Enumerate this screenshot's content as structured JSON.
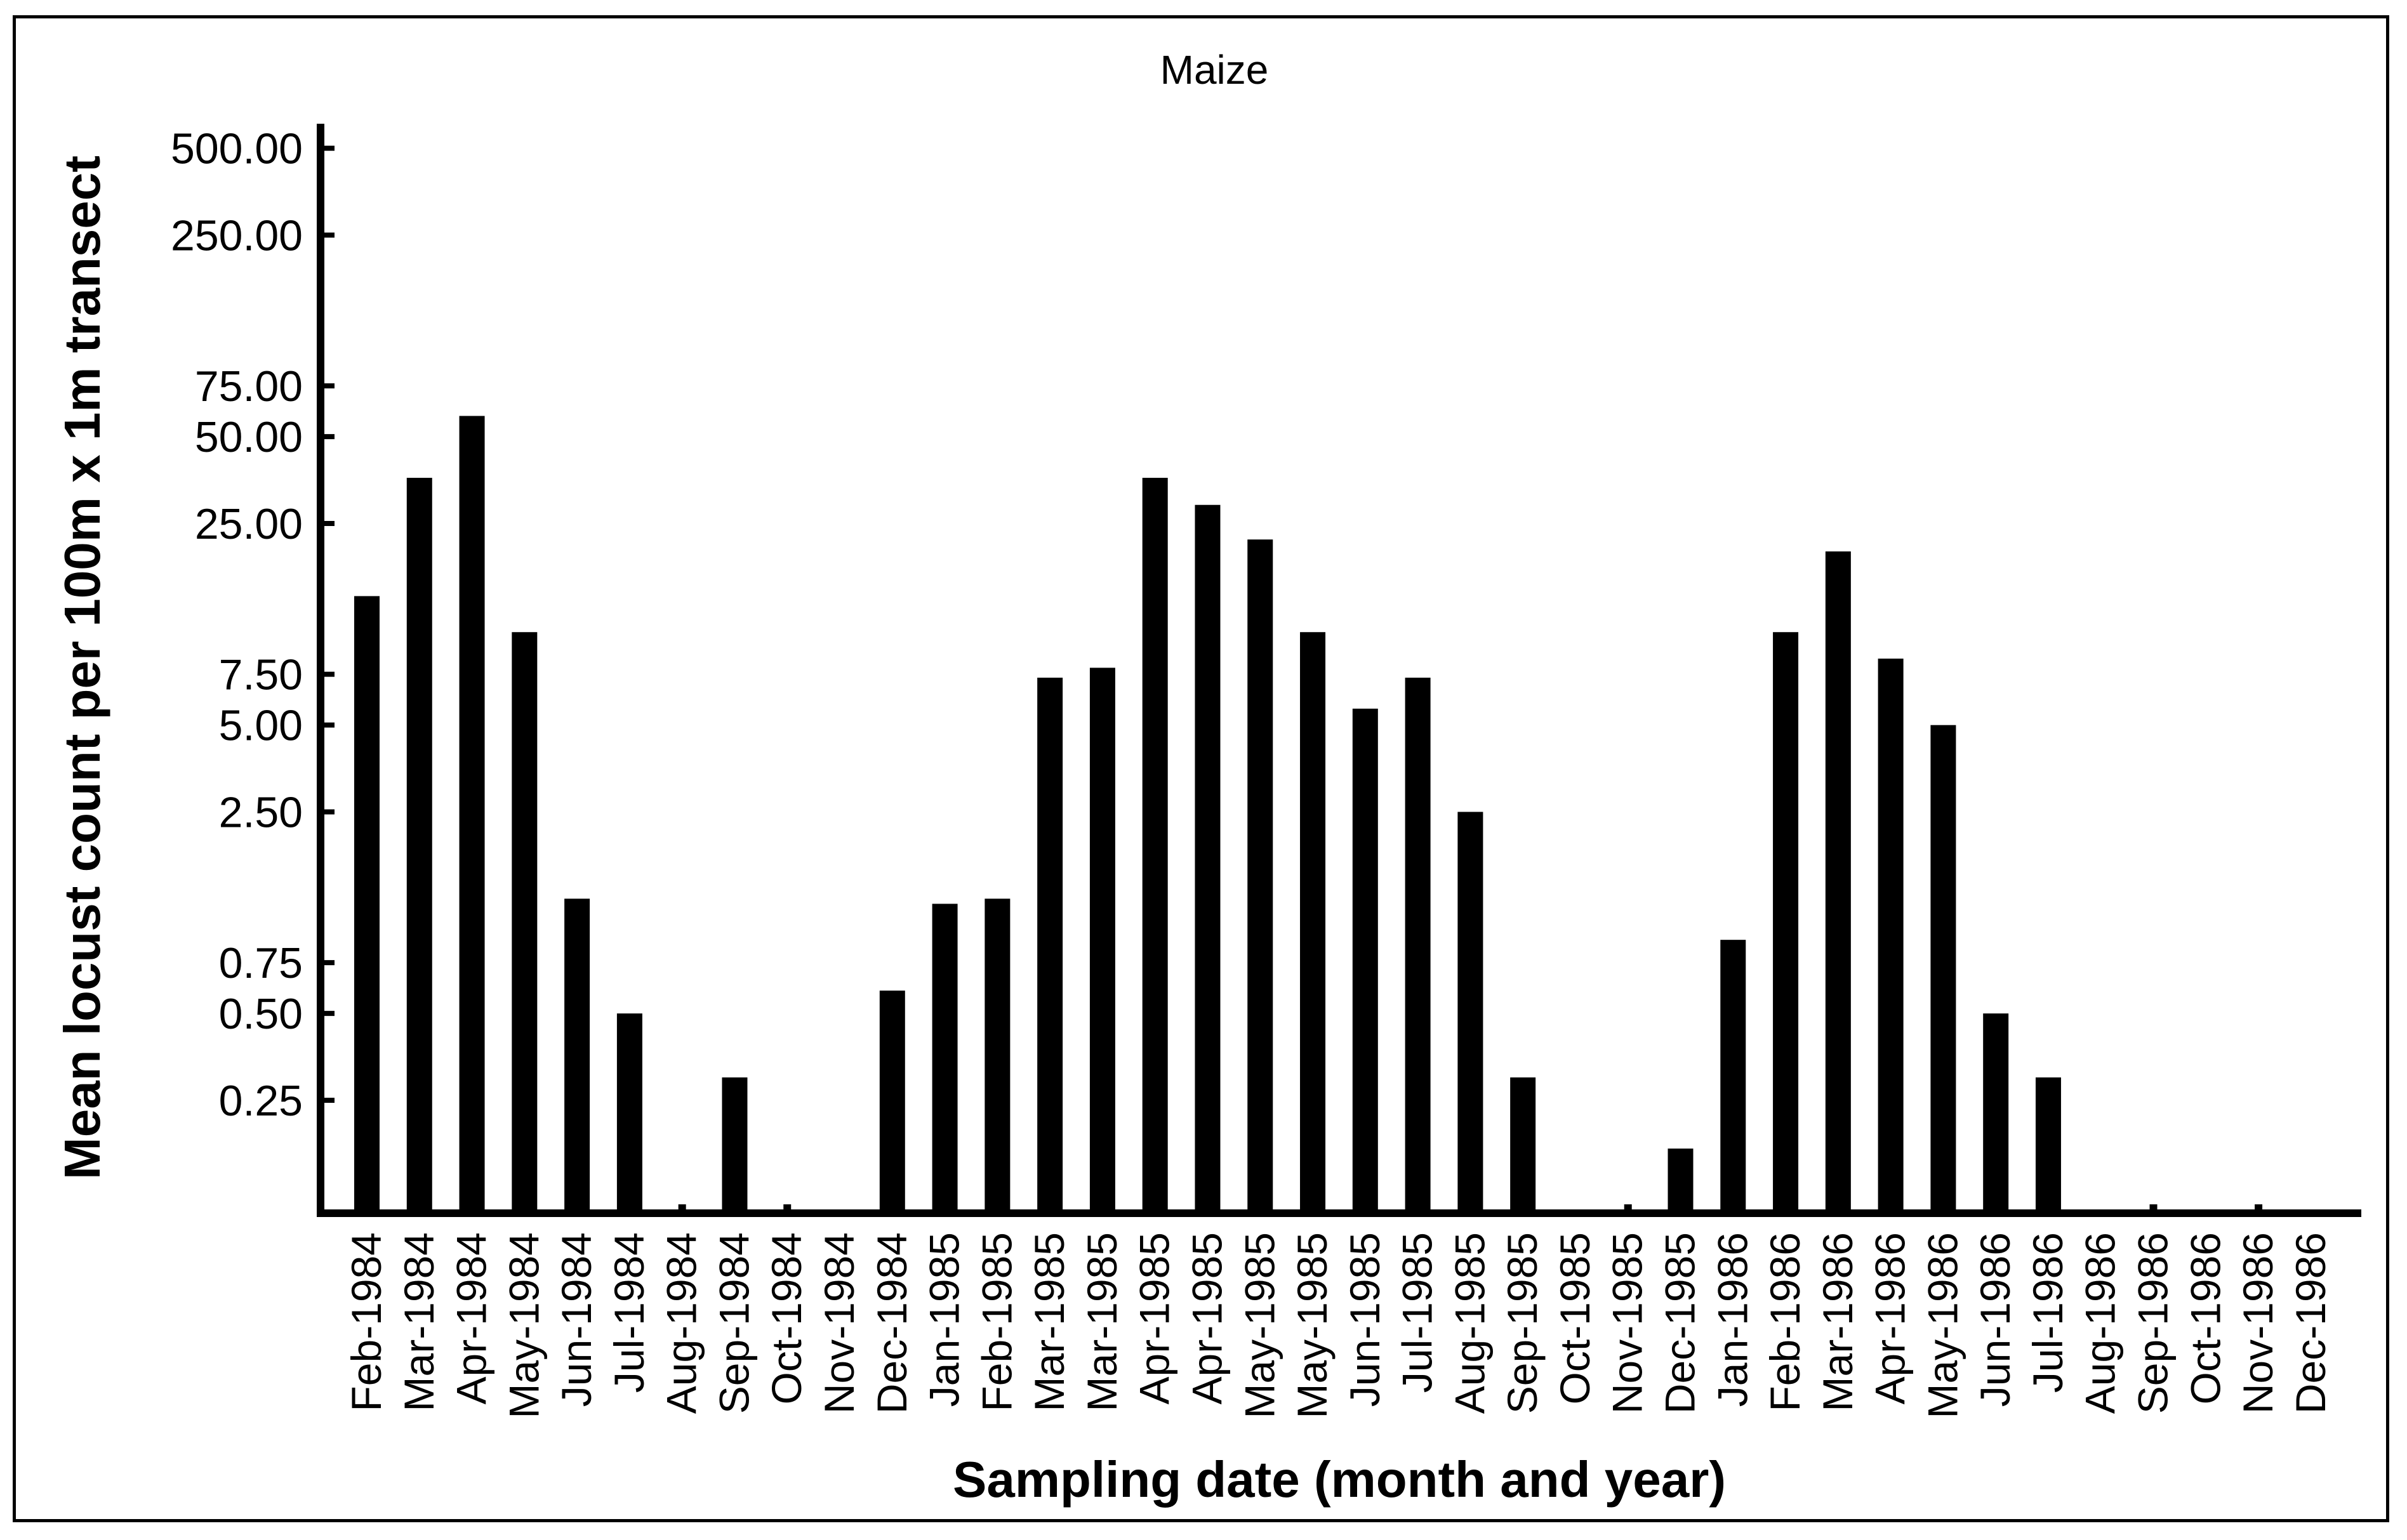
{
  "chart_data": {
    "type": "bar",
    "title": "Maize",
    "xlabel": "Sampling date (month and year)",
    "ylabel": "Mean locust count per 100m x 1m transect",
    "y_scale": "log",
    "y_ticks": [
      {
        "value": 0.25,
        "label": "0.25"
      },
      {
        "value": 0.5,
        "label": "0.50"
      },
      {
        "value": 0.75,
        "label": "0.75"
      },
      {
        "value": 2.5,
        "label": "2.50"
      },
      {
        "value": 5,
        "label": "5.00"
      },
      {
        "value": 7.5,
        "label": "7.50"
      },
      {
        "value": 25,
        "label": "25.00"
      },
      {
        "value": 50,
        "label": "50.00"
      },
      {
        "value": 75,
        "label": "75.00"
      },
      {
        "value": 250,
        "label": "250.00"
      },
      {
        "value": 500,
        "label": "500.00"
      }
    ],
    "ylim": [
      0.07,
      650
    ],
    "grid": false,
    "bar_color": "#000000",
    "categories": [
      "Feb-1984",
      "Mar-1984",
      "Apr-1984",
      "May-1984",
      "Jun-1984",
      "Jul-1984",
      "Aug-1984",
      "Sep-1984",
      "Oct-1984",
      "Nov-1984",
      "Dec-1984",
      "Jan-1985",
      "Feb-1985",
      "Mar-1985",
      "Mar-1985",
      "Apr-1985",
      "Apr-1985",
      "May-1985",
      "May-1985",
      "Jun-1985",
      "Jul-1985",
      "Aug-1985",
      "Sep-1985",
      "Oct-1985",
      "Nov-1985",
      "Dec-1985",
      "Jan-1986",
      "Feb-1986",
      "Mar-1986",
      "Apr-1986",
      "May-1986",
      "Jun-1986",
      "Jul-1986",
      "Aug-1986",
      "Sep-1986",
      "Oct-1986",
      "Nov-1986",
      "Dec-1986"
    ],
    "values": [
      14,
      36,
      59,
      10.5,
      1.25,
      0.5,
      0,
      0.3,
      0,
      null,
      0.6,
      1.2,
      1.25,
      7.3,
      7.9,
      36,
      29,
      22,
      10.5,
      5.7,
      7.3,
      2.5,
      0.3,
      null,
      0,
      0.17,
      0.9,
      10.5,
      20,
      8.5,
      5,
      0.5,
      0.3,
      null,
      0,
      null,
      0,
      null
    ]
  }
}
